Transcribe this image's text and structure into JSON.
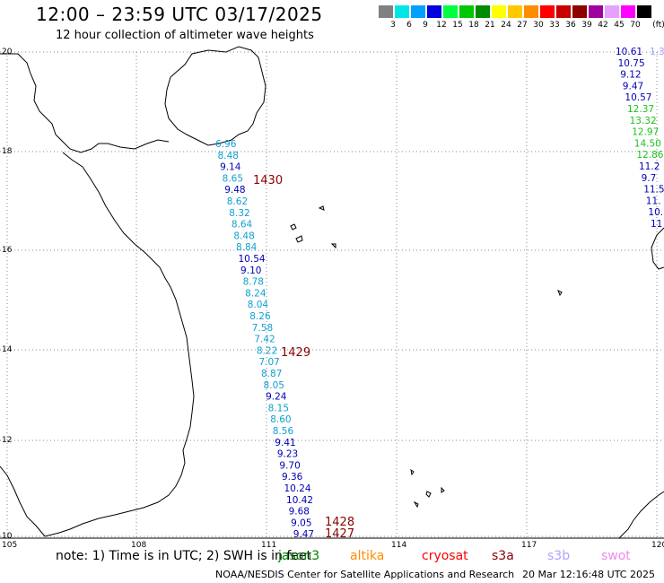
{
  "header": {
    "title": "12:00 – 23:59 UTC 03/17/2025",
    "subtitle": "12 hour collection of altimeter wave heights"
  },
  "legend": {
    "unit": "(ft)",
    "items": [
      {
        "color": "#808080",
        "label": "3"
      },
      {
        "color": "#00e6e6",
        "label": "6"
      },
      {
        "color": "#00a0ff",
        "label": "9"
      },
      {
        "color": "#0000e0",
        "label": "12"
      },
      {
        "color": "#00ff40",
        "label": "15"
      },
      {
        "color": "#00c800",
        "label": "18"
      },
      {
        "color": "#008c00",
        "label": "21"
      },
      {
        "color": "#ffff00",
        "label": "24"
      },
      {
        "color": "#ffc800",
        "label": "27"
      },
      {
        "color": "#ff8c00",
        "label": "30"
      },
      {
        "color": "#ff0000",
        "label": "33"
      },
      {
        "color": "#c80000",
        "label": "36"
      },
      {
        "color": "#8c0000",
        "label": "39"
      },
      {
        "color": "#a000a0",
        "label": "42"
      },
      {
        "color": "#e6a0ff",
        "label": "45"
      },
      {
        "color": "#ff00ff",
        "label": "70"
      },
      {
        "color": "#000000",
        "label": ""
      }
    ]
  },
  "axes": {
    "lat_labels": [
      "20",
      "18",
      "16",
      "14",
      "12",
      "10"
    ],
    "lon_labels": [
      "105",
      "108",
      "111",
      "114",
      "117",
      "120"
    ]
  },
  "track": {
    "color_cyan": "#10a0d0",
    "color_blue": "#0000b4",
    "readings": [
      {
        "v": "6.96",
        "c": "cyan"
      },
      {
        "v": "8.48",
        "c": "cyan"
      },
      {
        "v": "9.14",
        "c": "blue"
      },
      {
        "v": "8.65",
        "c": "cyan"
      },
      {
        "v": "9.48",
        "c": "blue"
      },
      {
        "v": "8.62",
        "c": "cyan"
      },
      {
        "v": "8.32",
        "c": "cyan"
      },
      {
        "v": "8.64",
        "c": "cyan"
      },
      {
        "v": "8.48",
        "c": "cyan"
      },
      {
        "v": "8.84",
        "c": "cyan"
      },
      {
        "v": "10.54",
        "c": "blue"
      },
      {
        "v": "9.10",
        "c": "blue"
      },
      {
        "v": "8.78",
        "c": "cyan"
      },
      {
        "v": "8.24",
        "c": "cyan"
      },
      {
        "v": "8.04",
        "c": "cyan"
      },
      {
        "v": "8.26",
        "c": "cyan"
      },
      {
        "v": "7.58",
        "c": "cyan"
      },
      {
        "v": "7.42",
        "c": "cyan"
      },
      {
        "v": "8.22",
        "c": "cyan"
      },
      {
        "v": "7.07",
        "c": "cyan"
      },
      {
        "v": "8.87",
        "c": "cyan"
      },
      {
        "v": "8.05",
        "c": "cyan"
      },
      {
        "v": "9.24",
        "c": "blue"
      },
      {
        "v": "8.15",
        "c": "cyan"
      },
      {
        "v": "8.60",
        "c": "cyan"
      },
      {
        "v": "8.56",
        "c": "cyan"
      },
      {
        "v": "9.41",
        "c": "blue"
      },
      {
        "v": "9.23",
        "c": "blue"
      },
      {
        "v": "9.70",
        "c": "blue"
      },
      {
        "v": "9.36",
        "c": "blue"
      },
      {
        "v": "10.24",
        "c": "blue"
      },
      {
        "v": "10.42",
        "c": "blue"
      },
      {
        "v": "9.68",
        "c": "blue"
      },
      {
        "v": "9.05",
        "c": "blue"
      },
      {
        "v": "9.47",
        "c": "blue"
      }
    ],
    "times": [
      "1430",
      "1429",
      "1428",
      "1427"
    ]
  },
  "right_track": {
    "readings": [
      {
        "v": "10.61",
        "c": "blue"
      },
      {
        "v": "1.3",
        "c": "lav"
      },
      {
        "v": "10.75",
        "c": "blue"
      },
      {
        "v": "9.12",
        "c": "blue"
      },
      {
        "v": "9.47",
        "c": "blue"
      },
      {
        "v": "10.57",
        "c": "blue"
      },
      {
        "v": "12.37",
        "c": "green"
      },
      {
        "v": "13.32",
        "c": "green"
      },
      {
        "v": "12.97",
        "c": "green"
      },
      {
        "v": "14.50",
        "c": "green"
      },
      {
        "v": "12.86",
        "c": "green"
      },
      {
        "v": "11.2",
        "c": "blue"
      },
      {
        "v": "9.7",
        "c": "blue"
      },
      {
        "v": "11.5",
        "c": "blue"
      },
      {
        "v": "11.",
        "c": "blue"
      },
      {
        "v": "10.",
        "c": "blue"
      },
      {
        "v": "11",
        "c": "blue"
      }
    ]
  },
  "footer": {
    "note": "note:  1) Time is in UTC; 2) SWH is in feet",
    "satellites": [
      {
        "name": "jason3",
        "color": "#008000"
      },
      {
        "name": "altika",
        "color": "#ff8c00"
      },
      {
        "name": "cryosat",
        "color": "#ff0000"
      },
      {
        "name": "s3a",
        "color": "#8b0000"
      },
      {
        "name": "s3b",
        "color": "#b0a0ff"
      },
      {
        "name": "swot",
        "color": "#ee88ee"
      }
    ],
    "source": "NOAA/NESDIS Center for Satellite Applications and Research",
    "timestamp": "20 Mar 12:16:48 UTC 2025"
  }
}
